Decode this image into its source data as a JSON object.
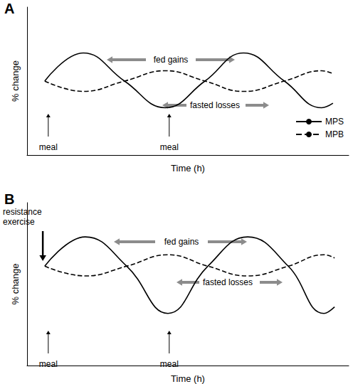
{
  "chart_data": [
    {
      "type": "line",
      "title": "A",
      "x_label": "Time (h)",
      "y_label": "% change",
      "xlim": [
        0,
        100
      ],
      "ylim": [
        0,
        100
      ],
      "tick_labels": false,
      "grid": false,
      "legend": "right",
      "x": [
        5.5,
        17.5,
        30.3,
        43,
        55.3,
        67.3,
        80,
        91.6,
        95.1
      ],
      "series": [
        {
          "name": "MPS",
          "color": "#000000",
          "line_style": "solid",
          "values": [
            50,
            69,
            50,
            32,
            50,
            69,
            50,
            32,
            35
          ]
        },
        {
          "name": "MPB",
          "color": "#000000",
          "line_style": "dashed",
          "values": [
            50,
            43,
            50,
            57,
            50,
            43,
            50,
            57,
            55
          ]
        }
      ],
      "annotations": [
        "fed gains",
        "fasted losses"
      ],
      "meals": [
        {
          "x": 6.6,
          "label": "meal"
        },
        {
          "x": 44.2,
          "label": "meal"
        }
      ]
    },
    {
      "type": "line",
      "title": "B",
      "x_label": "Time (h)",
      "y_label": "% change",
      "xlim": [
        0,
        100
      ],
      "ylim": [
        0,
        100
      ],
      "tick_labels": false,
      "grid": false,
      "x": [
        5.5,
        18.1,
        31,
        43.8,
        56.2,
        68.6,
        81.2,
        92.3,
        95.6
      ],
      "series": [
        {
          "name": "MPS",
          "color": "#000000",
          "line_style": "solid",
          "values": [
            61,
            79,
            61,
            32,
            61,
            79,
            61,
            32,
            36
          ]
        },
        {
          "name": "MPB",
          "color": "#000000",
          "line_style": "dashed",
          "values": [
            61,
            55,
            61,
            68,
            61,
            55,
            61,
            68,
            66
          ]
        }
      ],
      "annotations": [
        "fed gains",
        "fasted losses"
      ],
      "meals": [
        {
          "x": 6.6,
          "label": "meal"
        },
        {
          "x": 44.2,
          "label": "meal"
        }
      ],
      "exercise": {
        "x": 4.9,
        "label": "resistance exercise"
      }
    }
  ]
}
